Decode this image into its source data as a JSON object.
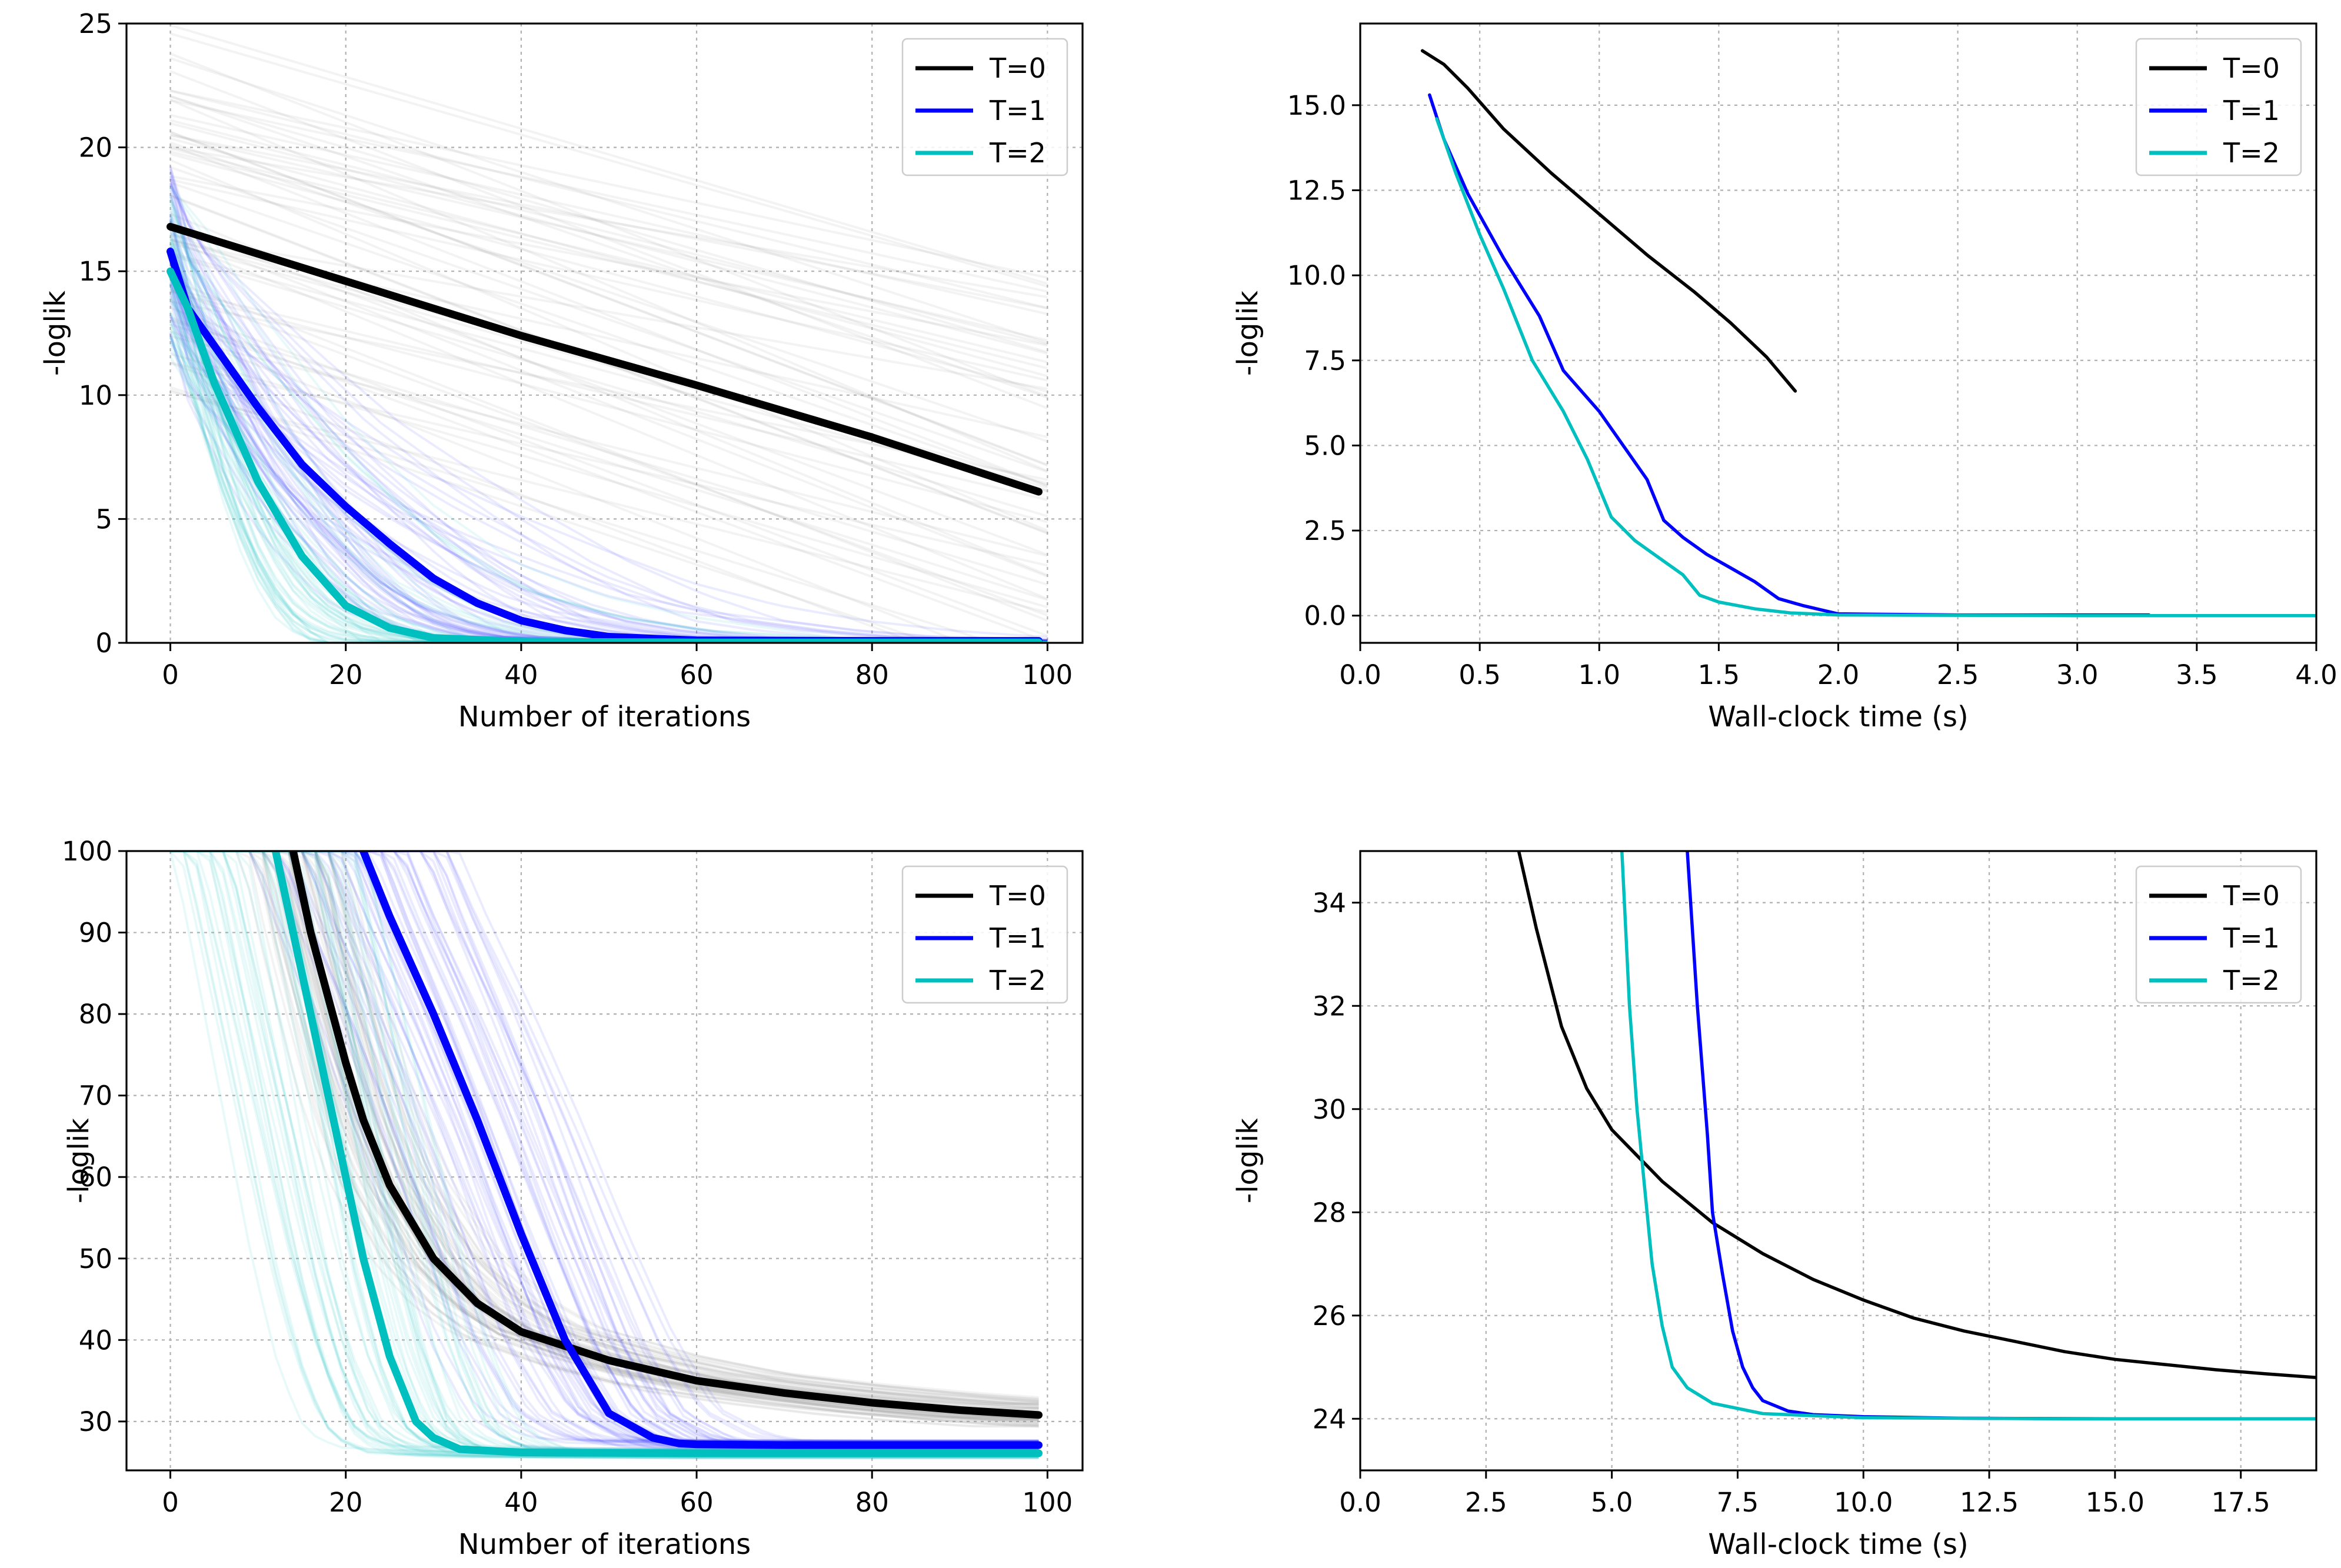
{
  "chart_data": [
    {
      "id": "top-left",
      "type": "line",
      "xlabel": "Number of iterations",
      "ylabel": "-loglik",
      "xlim": [
        -5,
        104
      ],
      "ylim": [
        0,
        25
      ],
      "xticks": [
        "0",
        "20",
        "40",
        "60",
        "80",
        "100"
      ],
      "yticks": [
        "0",
        "5",
        "10",
        "15",
        "20",
        "25"
      ],
      "grid": true,
      "legend": "top-right",
      "series": [
        {
          "name": "T=0",
          "color": "#000000",
          "x": [
            0,
            20,
            40,
            60,
            80,
            99
          ],
          "y": [
            16.8,
            14.6,
            12.4,
            10.4,
            8.3,
            6.1
          ]
        },
        {
          "name": "T=1",
          "color": "#0000ff",
          "x": [
            0,
            2,
            5,
            10,
            15,
            20,
            25,
            30,
            35,
            40,
            45,
            50,
            60,
            80,
            99
          ],
          "y": [
            15.8,
            13.5,
            12.0,
            9.5,
            7.2,
            5.5,
            4.0,
            2.6,
            1.6,
            0.9,
            0.5,
            0.25,
            0.1,
            0.08,
            0.08
          ]
        },
        {
          "name": "T=2",
          "color": "#00bfbf",
          "x": [
            0,
            2,
            5,
            10,
            15,
            20,
            25,
            30,
            40,
            60,
            99
          ],
          "y": [
            15.0,
            13.5,
            10.5,
            6.5,
            3.5,
            1.5,
            0.6,
            0.2,
            0.05,
            0.02,
            0.02
          ]
        }
      ]
    },
    {
      "id": "top-right",
      "type": "line",
      "xlabel": "Wall-clock time (s)",
      "ylabel": "-loglik",
      "xlim": [
        0,
        4.0
      ],
      "ylim": [
        -0.8,
        17.4
      ],
      "xticks": [
        "0.0",
        "0.5",
        "1.0",
        "1.5",
        "2.0",
        "2.5",
        "3.0",
        "3.5",
        "4.0"
      ],
      "yticks": [
        "0.0",
        "2.5",
        "5.0",
        "7.5",
        "10.0",
        "12.5",
        "15.0"
      ],
      "grid": true,
      "legend": "top-right",
      "series": [
        {
          "name": "T=0",
          "color": "#000000",
          "x": [
            0.26,
            0.35,
            0.45,
            0.6,
            0.8,
            1.0,
            1.2,
            1.4,
            1.55,
            1.7,
            1.82
          ],
          "y": [
            16.6,
            16.2,
            15.5,
            14.3,
            13.0,
            11.8,
            10.6,
            9.5,
            8.6,
            7.6,
            6.6
          ]
        },
        {
          "name": "T=1",
          "color": "#0000ff",
          "x": [
            0.29,
            0.35,
            0.45,
            0.6,
            0.75,
            0.85,
            1.0,
            1.1,
            1.2,
            1.27,
            1.35,
            1.45,
            1.55,
            1.65,
            1.75,
            1.85,
            2.0,
            2.5,
            3.3
          ],
          "y": [
            15.3,
            14.0,
            12.4,
            10.5,
            8.8,
            7.2,
            6.0,
            5.0,
            4.0,
            2.8,
            2.3,
            1.8,
            1.4,
            1.0,
            0.5,
            0.3,
            0.05,
            0.02,
            0.02
          ]
        },
        {
          "name": "T=2",
          "color": "#00bfbf",
          "x": [
            0.32,
            0.4,
            0.5,
            0.6,
            0.72,
            0.85,
            0.95,
            1.05,
            1.15,
            1.25,
            1.35,
            1.42,
            1.5,
            1.65,
            1.8,
            2.0,
            3.0,
            4.0
          ],
          "y": [
            14.6,
            13.0,
            11.2,
            9.6,
            7.5,
            6.0,
            4.6,
            2.9,
            2.2,
            1.7,
            1.2,
            0.6,
            0.4,
            0.2,
            0.08,
            0.02,
            0.0,
            0.0
          ]
        }
      ]
    },
    {
      "id": "bottom-left",
      "type": "line",
      "xlabel": "Number of iterations",
      "ylabel": "-loglik",
      "xlim": [
        -5,
        104
      ],
      "ylim": [
        24,
        100
      ],
      "xticks": [
        "0",
        "20",
        "40",
        "60",
        "80",
        "100"
      ],
      "yticks": [
        "30",
        "40",
        "50",
        "60",
        "70",
        "80",
        "90",
        "100"
      ],
      "grid": true,
      "legend": "top-right",
      "series": [
        {
          "name": "T=0",
          "color": "#000000",
          "x": [
            14,
            16,
            18,
            20,
            22,
            25,
            30,
            35,
            40,
            50,
            60,
            70,
            80,
            90,
            99
          ],
          "y": [
            100,
            90,
            82,
            74,
            67,
            59,
            50,
            44.5,
            41,
            37.5,
            35,
            33.5,
            32.3,
            31.4,
            30.8
          ]
        },
        {
          "name": "T=1",
          "color": "#0000ff",
          "x": [
            22,
            25,
            30,
            35,
            40,
            45,
            50,
            55,
            58,
            60,
            70,
            80,
            99
          ],
          "y": [
            100,
            92,
            80,
            67,
            53,
            40,
            31,
            28,
            27.3,
            27.2,
            27.1,
            27.1,
            27.1
          ]
        },
        {
          "name": "T=2",
          "color": "#00bfbf",
          "x": [
            12,
            14,
            17,
            20,
            22,
            25,
            28,
            30,
            33,
            40,
            60,
            80,
            99
          ],
          "y": [
            100,
            90,
            75,
            60,
            50,
            38,
            30,
            28,
            26.6,
            26.2,
            26.1,
            26.1,
            26.1
          ]
        }
      ]
    },
    {
      "id": "bottom-right",
      "type": "line",
      "xlabel": "Wall-clock time (s)",
      "ylabel": "-loglik",
      "xlim": [
        0,
        19
      ],
      "ylim": [
        23,
        35
      ],
      "xticks": [
        "0.0",
        "2.5",
        "5.0",
        "7.5",
        "10.0",
        "12.5",
        "15.0",
        "17.5"
      ],
      "yticks": [
        "24",
        "26",
        "28",
        "30",
        "32",
        "34"
      ],
      "grid": true,
      "legend": "top-right",
      "series": [
        {
          "name": "T=0",
          "color": "#000000",
          "x": [
            3.15,
            3.5,
            4.0,
            4.5,
            5.0,
            6.0,
            7.0,
            8.0,
            9.0,
            10.0,
            11.0,
            12.0,
            13.0,
            14.0,
            15.0,
            16.0,
            17.0,
            18.0,
            19.0
          ],
          "y": [
            35.0,
            33.5,
            31.6,
            30.4,
            29.6,
            28.6,
            27.8,
            27.2,
            26.7,
            26.3,
            25.95,
            25.7,
            25.5,
            25.3,
            25.15,
            25.05,
            24.95,
            24.87,
            24.8
          ]
        },
        {
          "name": "T=1",
          "color": "#0000ff",
          "x": [
            6.5,
            6.7,
            6.9,
            7.0,
            7.2,
            7.4,
            7.6,
            7.8,
            8.0,
            8.5,
            9.0,
            10.0,
            12.0,
            15.0,
            19.0
          ],
          "y": [
            35.0,
            32.0,
            29.5,
            28.0,
            26.8,
            25.7,
            25.0,
            24.6,
            24.35,
            24.15,
            24.08,
            24.04,
            24.01,
            24.0,
            24.0
          ]
        },
        {
          "name": "T=2",
          "color": "#00bfbf",
          "x": [
            5.2,
            5.35,
            5.5,
            5.65,
            5.8,
            6.0,
            6.2,
            6.5,
            7.0,
            8.0,
            10.0,
            14.0,
            19.0
          ],
          "y": [
            35.0,
            32.0,
            30.0,
            28.5,
            27.0,
            25.8,
            25.0,
            24.6,
            24.3,
            24.1,
            24.02,
            24.0,
            24.0
          ]
        }
      ]
    }
  ]
}
